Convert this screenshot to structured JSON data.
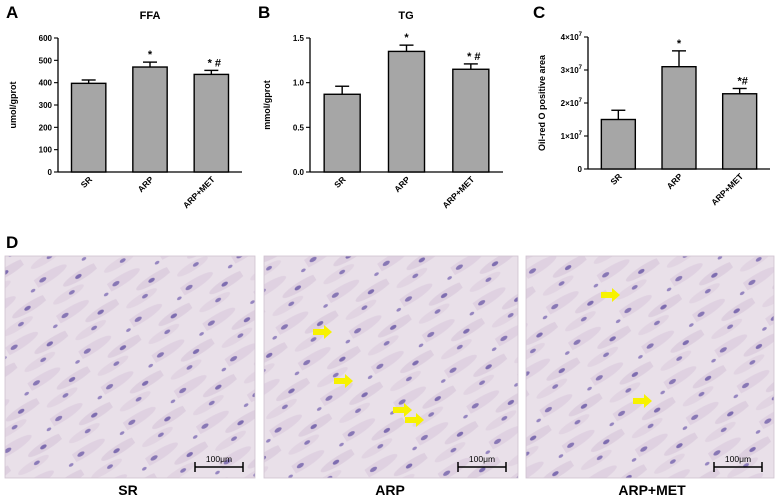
{
  "panel_labels": [
    "A",
    "B",
    "C",
    "D"
  ],
  "chart_data": [
    {
      "type": "bar",
      "panel": "A",
      "title": "FFA",
      "ylabel": "umol/gprot",
      "categories": [
        "SR",
        "ARP",
        "ARP+MET"
      ],
      "values": [
        397,
        470,
        437
      ],
      "errors": [
        15,
        22,
        18
      ],
      "annotations": [
        "",
        "*",
        "* #"
      ],
      "ylim": [
        0,
        600
      ],
      "yticks": [
        0,
        100,
        200,
        300,
        400,
        500,
        600
      ],
      "ytick_labels": [
        "0",
        "100",
        "200",
        "300",
        "400",
        "500",
        "600"
      ],
      "bar_color": "#a6a6a6"
    },
    {
      "type": "bar",
      "panel": "B",
      "title": "TG",
      "ylabel": "mmol/gprot",
      "categories": [
        "SR",
        "ARP",
        "ARP+MET"
      ],
      "values": [
        0.87,
        1.35,
        1.15
      ],
      "errors": [
        0.09,
        0.07,
        0.06
      ],
      "annotations": [
        "",
        "*",
        "* #"
      ],
      "ylim": [
        0,
        1.5
      ],
      "yticks": [
        0,
        0.5,
        1.0,
        1.5
      ],
      "ytick_labels": [
        "0.0",
        "0.5",
        "1.0",
        "1.5"
      ],
      "bar_color": "#a6a6a6"
    },
    {
      "type": "bar",
      "panel": "C",
      "title": "",
      "ylabel": "Oil-red O positive area",
      "categories": [
        "SR",
        "ARP",
        "ARP+MET"
      ],
      "values": [
        15000000,
        31000000,
        22800000
      ],
      "errors": [
        2800000,
        4800000,
        1600000
      ],
      "annotations": [
        "",
        "*",
        "*#"
      ],
      "ylim": [
        0,
        40000000
      ],
      "yticks": [
        0,
        10000000,
        20000000,
        30000000,
        40000000
      ],
      "ytick_labels": [
        "0",
        "1×10",
        "2×10",
        "3×10",
        "4×10"
      ],
      "ytick_exponents": [
        "",
        "7",
        "7",
        "7",
        "7"
      ],
      "bar_color": "#a6a6a6"
    }
  ],
  "micrographs": [
    {
      "label": "SR",
      "scale_bar": "100μm",
      "arrows": 0
    },
    {
      "label": "ARP",
      "scale_bar": "100μm",
      "arrows": 4
    },
    {
      "label": "ARP+MET",
      "scale_bar": "100μm",
      "arrows": 2
    }
  ],
  "colors": {
    "tissue": "#e7dde7",
    "nucleus": "#8a79b8",
    "arrow": "#f7f200",
    "axis": "#000000"
  }
}
